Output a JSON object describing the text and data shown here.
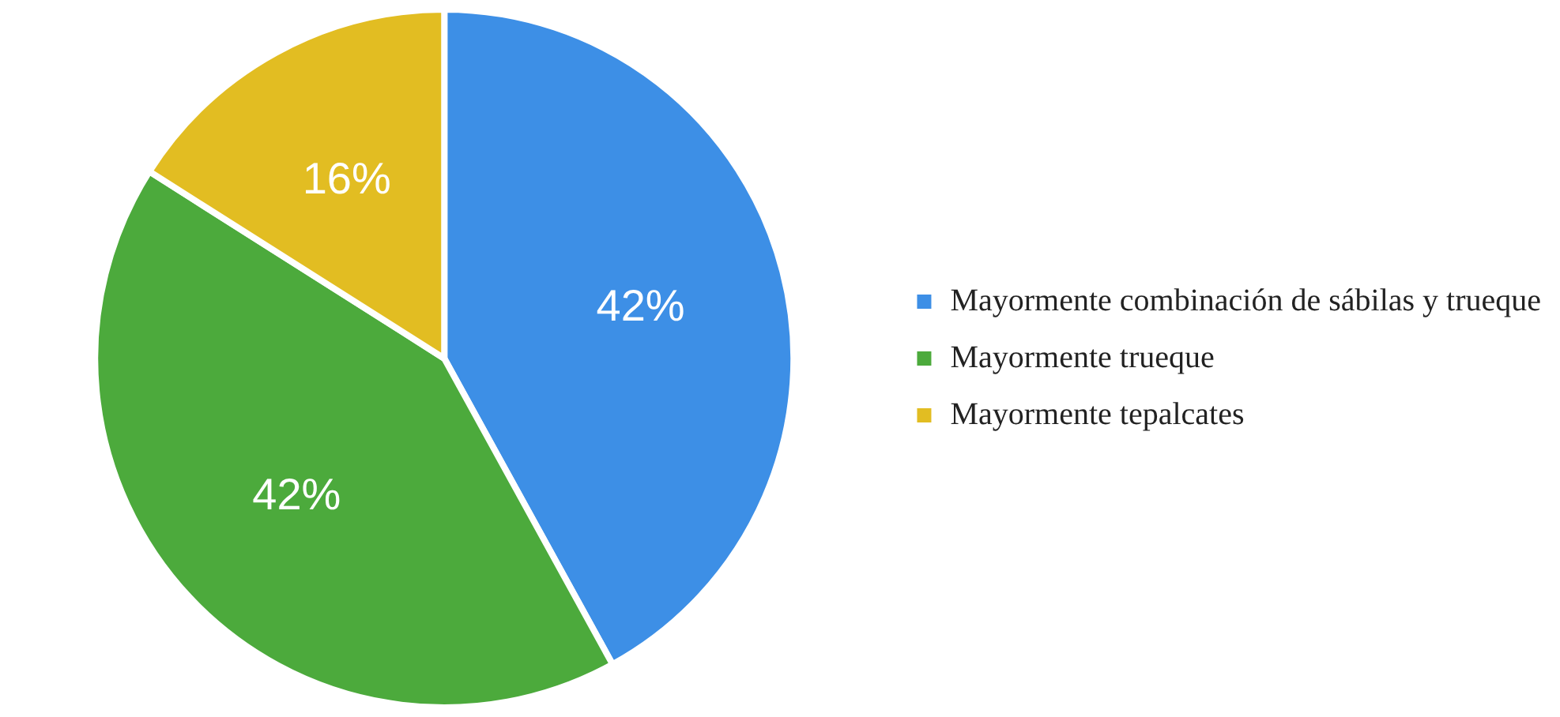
{
  "chart_data": {
    "type": "pie",
    "categories": [
      "Mayormente combinación de sábilas y trueque",
      "Mayormente trueque",
      "Mayormente tepalcates"
    ],
    "values": [
      42,
      42,
      16
    ],
    "colors": [
      "#3d8fe6",
      "#4caa3c",
      "#e2bd22"
    ],
    "value_labels": [
      "42%",
      "42%",
      "16%"
    ],
    "legend": "right"
  }
}
